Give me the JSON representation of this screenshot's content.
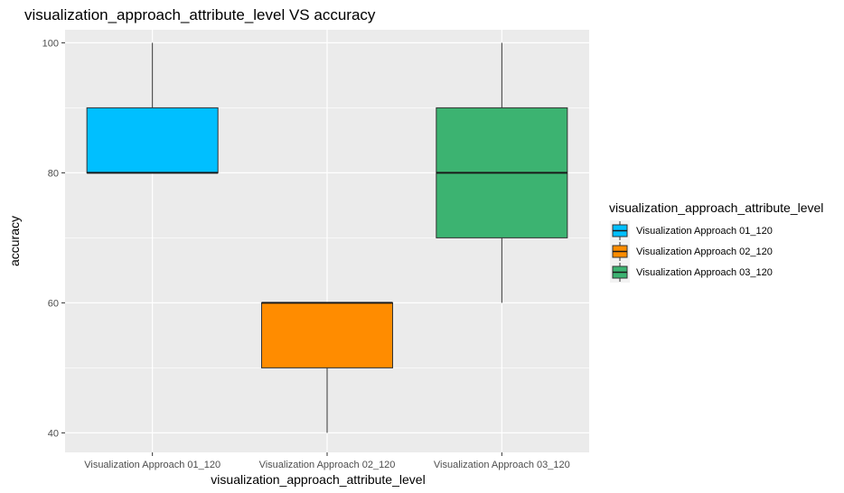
{
  "chart_data": {
    "type": "boxplot",
    "title": "visualization_approach_attribute_level VS accuracy",
    "xlabel": "visualization_approach_attribute_level",
    "ylabel": "accuracy",
    "ylim": [
      37,
      102
    ],
    "yticks": [
      40,
      60,
      80,
      100
    ],
    "grid": true,
    "legend": {
      "title": "visualization_approach_attribute_level",
      "placement": "right"
    },
    "categories": [
      "Visualization Approach 01_120",
      "Visualization Approach 02_120",
      "Visualization Approach 03_120"
    ],
    "series": [
      {
        "name": "Visualization Approach 01_120",
        "color": "#00bfff",
        "min": 80,
        "q1": 80,
        "median": 80,
        "q3": 90,
        "max": 100
      },
      {
        "name": "Visualization Approach 02_120",
        "color": "#ff8c00",
        "min": 40,
        "q1": 50,
        "median": 60,
        "q3": 60,
        "max": 60
      },
      {
        "name": "Visualization Approach 03_120",
        "color": "#3cb371",
        "min": 60,
        "q1": 70,
        "median": 80,
        "q3": 90,
        "max": 100
      }
    ]
  }
}
